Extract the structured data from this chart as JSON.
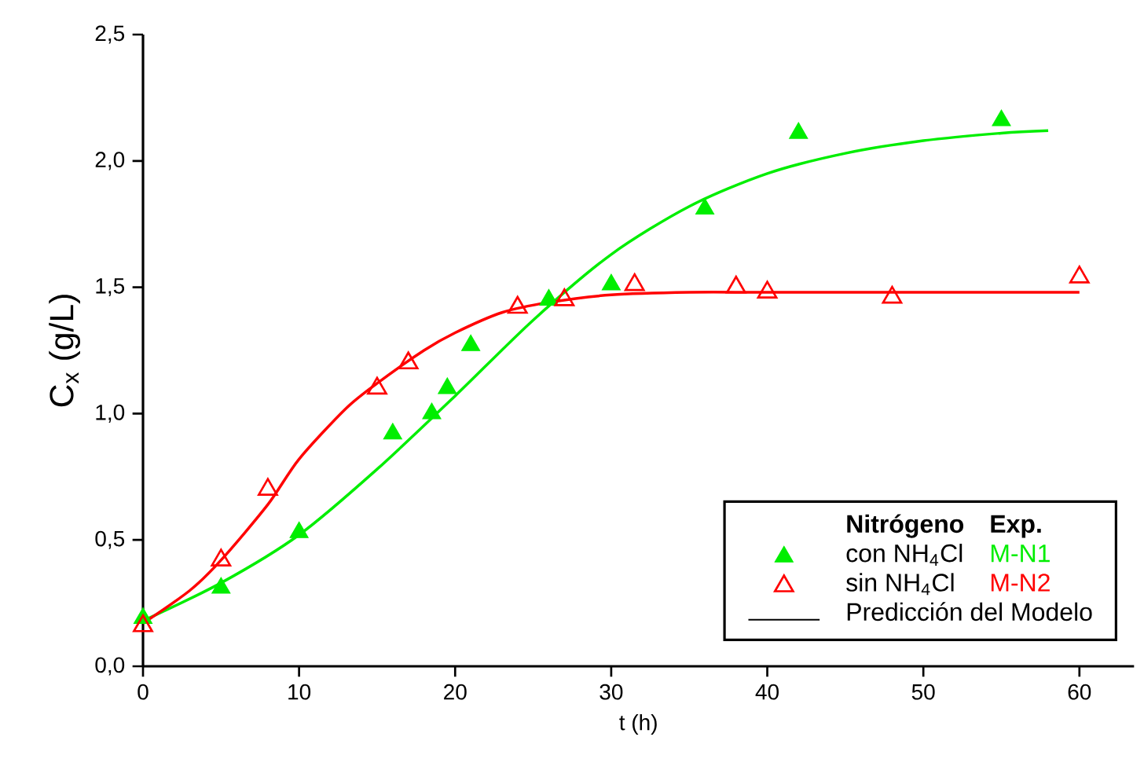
{
  "chart_data": {
    "type": "scatter",
    "xlabel": "t (h)",
    "ylabel": "C$_{x}$ (g/L)",
    "xlim": [
      0,
      63.5
    ],
    "ylim": [
      0,
      2.5
    ],
    "xticks": [
      0,
      10,
      20,
      30,
      40,
      50,
      60
    ],
    "yticks": [
      {
        "value": 0,
        "label": "0,0"
      },
      {
        "value": 0.5,
        "label": "0,5"
      },
      {
        "value": 1,
        "label": "1,0"
      },
      {
        "value": 1.5,
        "label": "1,5"
      },
      {
        "value": 2,
        "label": "2,0"
      },
      {
        "value": 2.5,
        "label": "2,5"
      }
    ],
    "legend": "bottom right",
    "legend_title": "Nitrógeno",
    "grid": false,
    "annotations": [
      "Exp.",
      "M-N1",
      "M-N2",
      "Predicción del Modelo"
    ],
    "series": [
      {
        "name": "con NH$_{4}$Cl",
        "color": "#00ee00",
        "marker": "triangle",
        "x": [
          0,
          5,
          10,
          16,
          18.5,
          19.5,
          21,
          26,
          30,
          36,
          42,
          55
        ],
        "values": [
          0.19,
          0.31,
          0.53,
          0.92,
          1.0,
          1.1,
          1.27,
          1.45,
          1.51,
          1.81,
          2.11,
          2.16
        ]
      },
      {
        "name": "sin NH$_{4}$Cl",
        "color": "#ff0000",
        "marker": "triangle-open",
        "x": [
          0,
          5,
          8,
          15,
          17,
          24,
          27,
          31.5,
          38,
          40,
          48,
          60
        ],
        "values": [
          0.16,
          0.42,
          0.7,
          1.1,
          1.2,
          1.42,
          1.45,
          1.51,
          1.5,
          1.48,
          1.46,
          1.54
        ]
      },
      {
        "type": "line",
        "color": "#00ee00",
        "marker": "none",
        "x": [
          0,
          5,
          10,
          15,
          20,
          25,
          30,
          35,
          40,
          45,
          50,
          55,
          58
        ],
        "values": [
          0.18,
          0.33,
          0.52,
          0.78,
          1.07,
          1.37,
          1.63,
          1.82,
          1.95,
          2.03,
          2.08,
          2.11,
          2.12
        ]
      },
      {
        "type": "line",
        "color": "#ff0000",
        "marker": "none",
        "x": [
          0,
          3,
          5,
          8,
          10,
          13,
          15,
          18,
          20,
          23,
          26,
          30,
          35,
          40,
          50,
          60
        ],
        "values": [
          0.17,
          0.3,
          0.42,
          0.64,
          0.82,
          1.02,
          1.12,
          1.25,
          1.32,
          1.4,
          1.44,
          1.47,
          1.48,
          1.48,
          1.48,
          1.48
        ]
      }
    ]
  }
}
